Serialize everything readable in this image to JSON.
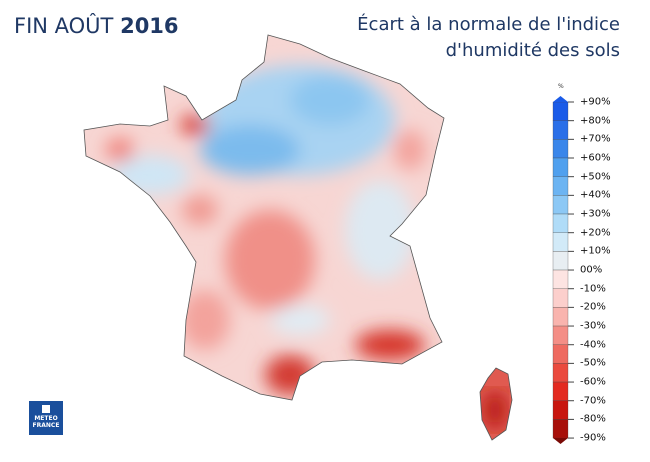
{
  "title_left": {
    "prefix": "FIN AOÛT",
    "year": "2016"
  },
  "title_right": {
    "line1": "Écart à la normale de l'indice",
    "line2": "d'humidité des sols"
  },
  "legend": {
    "unit": "%",
    "ticks": [
      "+90%",
      "+80%",
      "+70%",
      "+60%",
      "+50%",
      "+40%",
      "+30%",
      "+20%",
      "+10%",
      "00%",
      "-10%",
      "-20%",
      "-30%",
      "-40%",
      "-50%",
      "-60%",
      "-70%",
      "-80%",
      "-90%"
    ],
    "colors": [
      "#1a5be8",
      "#2a6fe8",
      "#3a86ea",
      "#50a0ee",
      "#6cb4f2",
      "#8cc8f5",
      "#b0dcf8",
      "#d2eaf8",
      "#e8eef2",
      "#fde4e2",
      "#fccfcc",
      "#f9b4ae",
      "#f48e86",
      "#ee6a60",
      "#ea4a3e",
      "#e32a20",
      "#c8160f",
      "#a8100a"
    ]
  },
  "logo": {
    "line1": "METEO",
    "line2": "FRANCE"
  }
}
